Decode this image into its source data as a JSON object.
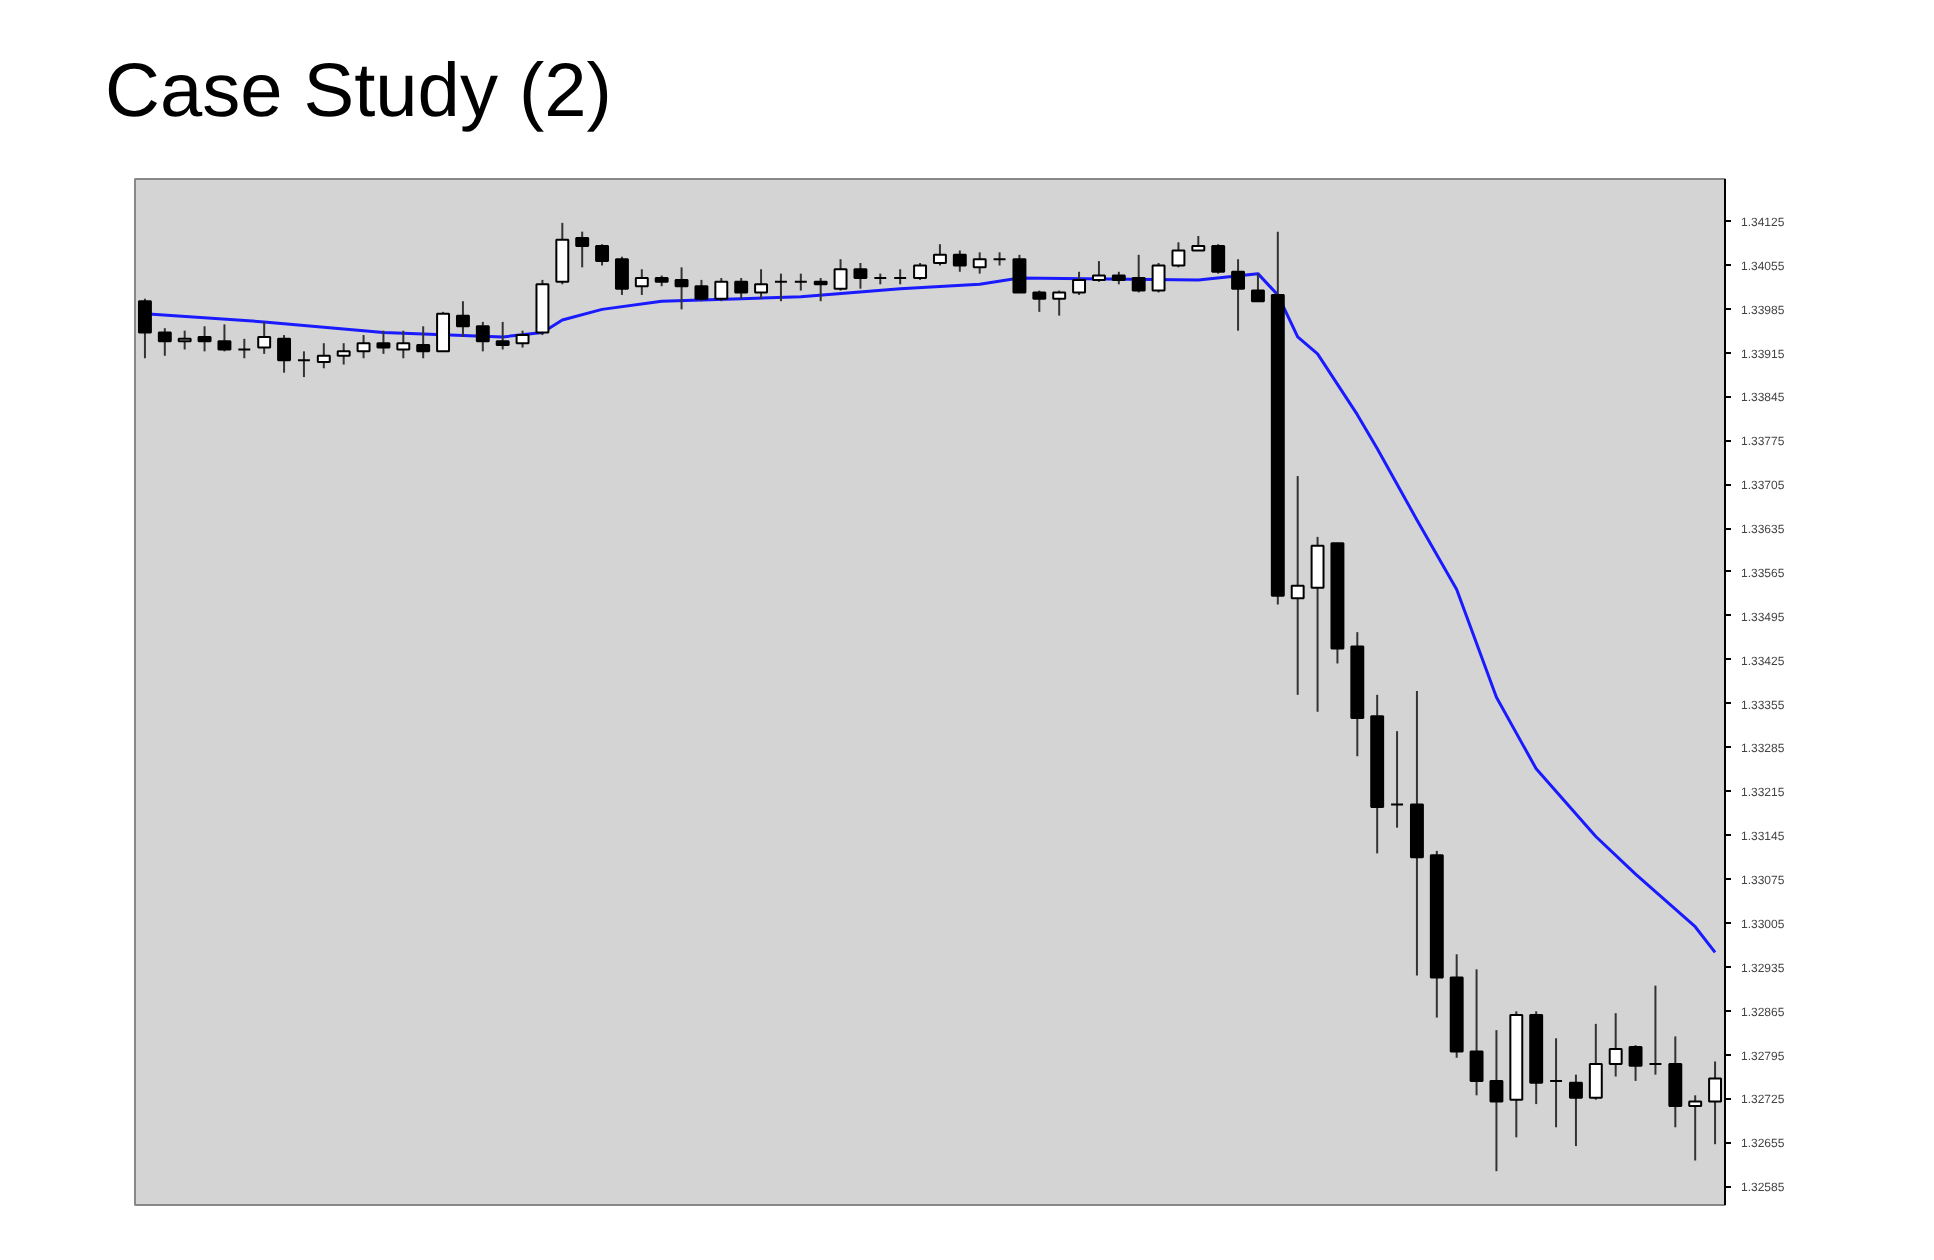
{
  "chart_data": {
    "type": "candlestick",
    "title": "Case Study (2)",
    "categories": [
      null,
      null,
      null,
      null,
      null,
      null,
      null,
      null,
      null,
      null,
      null,
      null,
      null,
      null,
      null,
      null,
      null,
      null,
      null,
      null,
      null,
      null,
      null,
      null,
      null,
      null,
      null,
      null,
      null,
      null,
      null,
      null,
      null,
      null,
      null,
      null,
      null,
      null,
      null,
      null,
      null,
      null,
      null,
      null,
      null,
      null,
      null,
      null,
      null,
      null,
      null,
      null,
      null,
      null,
      null,
      null,
      null,
      null,
      null,
      null,
      null,
      null,
      null,
      null,
      null,
      null,
      null,
      null,
      null,
      null,
      null,
      null,
      null,
      null,
      null,
      null,
      null,
      null,
      null,
      null
    ],
    "ohlc": [
      [
        1.33997,
        1.34001,
        1.33906,
        1.33947
      ],
      [
        1.33947,
        1.33954,
        1.3391,
        1.33933
      ],
      [
        1.33933,
        1.3395,
        1.3392,
        1.33937
      ],
      [
        1.3394,
        1.33957,
        1.33917,
        1.33933
      ],
      [
        1.33933,
        1.3396,
        1.33917,
        1.3392
      ],
      [
        1.3392,
        1.33937,
        1.33906,
        1.3392
      ],
      [
        1.33923,
        1.33964,
        1.33913,
        1.3394
      ],
      [
        1.33937,
        1.33943,
        1.33883,
        1.33903
      ],
      [
        1.33903,
        1.33917,
        1.33876,
        1.33903
      ],
      [
        1.339,
        1.3393,
        1.3389,
        1.3391
      ],
      [
        1.3391,
        1.3393,
        1.33896,
        1.33917
      ],
      [
        1.33917,
        1.33943,
        1.33906,
        1.3393
      ],
      [
        1.3393,
        1.3395,
        1.33913,
        1.33923
      ],
      [
        1.3392,
        1.3395,
        1.33906,
        1.3393
      ],
      [
        1.33927,
        1.33957,
        1.33906,
        1.33917
      ],
      [
        1.33917,
        1.3398,
        1.33917,
        1.33977
      ],
      [
        1.33974,
        1.33997,
        1.3394,
        1.33957
      ],
      [
        1.33957,
        1.33964,
        1.33917,
        1.33933
      ],
      [
        1.33933,
        1.33964,
        1.3392,
        1.33927
      ],
      [
        1.3393,
        1.3395,
        1.33923,
        1.33943
      ],
      [
        1.33947,
        1.34031,
        1.33943,
        1.34024
      ],
      [
        1.34028,
        1.34122,
        1.34024,
        1.34095
      ],
      [
        1.34098,
        1.34108,
        1.34051,
        1.34085
      ],
      [
        1.34085,
        1.34088,
        1.34054,
        1.34061
      ],
      [
        1.34064,
        1.34068,
        1.34007,
        1.34017
      ],
      [
        1.34021,
        1.34048,
        1.34007,
        1.34034
      ],
      [
        1.34034,
        1.34038,
        1.34021,
        1.34028
      ],
      [
        1.34031,
        1.34051,
        1.33984,
        1.34021
      ],
      [
        1.34021,
        1.34031,
        1.33997,
        1.34001
      ],
      [
        1.34001,
        1.34034,
        1.33997,
        1.34028
      ],
      [
        1.34028,
        1.34034,
        1.34001,
        1.34011
      ],
      [
        1.34011,
        1.34048,
        1.34001,
        1.34024
      ],
      [
        1.34028,
        1.34041,
        1.33997,
        1.34028
      ],
      [
        1.34028,
        1.34041,
        1.34014,
        1.34028
      ],
      [
        1.34028,
        1.34034,
        1.33997,
        1.34024
      ],
      [
        1.34017,
        1.34064,
        1.34014,
        1.34048
      ],
      [
        1.34048,
        1.34058,
        1.34017,
        1.34034
      ],
      [
        1.34034,
        1.34041,
        1.34024,
        1.34034
      ],
      [
        1.34034,
        1.34048,
        1.34024,
        1.34034
      ],
      [
        1.34034,
        1.34058,
        1.34031,
        1.34054
      ],
      [
        1.34058,
        1.34088,
        1.34054,
        1.34071
      ],
      [
        1.34071,
        1.34078,
        1.34044,
        1.34054
      ],
      [
        1.34051,
        1.34075,
        1.34041,
        1.34064
      ],
      [
        1.34064,
        1.34075,
        1.34054,
        1.34064
      ],
      [
        1.34064,
        1.34071,
        1.34011,
        1.34011
      ],
      [
        1.34011,
        1.34014,
        1.3398,
        1.34001
      ],
      [
        1.34001,
        1.34014,
        1.33974,
        1.34011
      ],
      [
        1.34011,
        1.34044,
        1.34007,
        1.34031
      ],
      [
        1.34031,
        1.34061,
        1.34028,
        1.34038
      ],
      [
        1.34038,
        1.34044,
        1.34024,
        1.34031
      ],
      [
        1.34034,
        1.34071,
        1.34011,
        1.34014
      ],
      [
        1.34014,
        1.34058,
        1.34011,
        1.34054
      ],
      [
        1.34054,
        1.34091,
        1.34051,
        1.34078
      ],
      [
        1.34078,
        1.34101,
        1.34078,
        1.34085
      ],
      [
        1.34085,
        1.34088,
        1.34041,
        1.34044
      ],
      [
        1.34044,
        1.34064,
        1.3395,
        1.34017
      ],
      [
        1.34014,
        1.34041,
        1.33997,
        1.33997
      ],
      [
        1.34007,
        1.34108,
        1.33513,
        1.33527
      ],
      [
        1.33523,
        1.33718,
        1.33369,
        1.33543
      ],
      [
        1.3354,
        1.33621,
        1.33342,
        1.33607
      ],
      [
        1.33611,
        1.33611,
        1.33419,
        1.33443
      ],
      [
        1.33446,
        1.33469,
        1.33271,
        1.33332
      ],
      [
        1.33335,
        1.33369,
        1.33116,
        1.3319
      ],
      [
        1.33194,
        1.33311,
        1.33157,
        1.33194
      ],
      [
        1.33194,
        1.33375,
        1.32921,
        1.3311
      ],
      [
        1.33113,
        1.3312,
        1.32854,
        1.32918
      ],
      [
        1.32918,
        1.32955,
        1.3279,
        1.328
      ],
      [
        1.328,
        1.32931,
        1.3273,
        1.32753
      ],
      [
        1.32753,
        1.32834,
        1.32609,
        1.3272
      ],
      [
        1.32723,
        1.32864,
        1.32663,
        1.32858
      ],
      [
        1.32858,
        1.32864,
        1.32716,
        1.3275
      ],
      [
        1.32753,
        1.32821,
        1.32679,
        1.32753
      ],
      [
        1.3275,
        1.32763,
        1.32649,
        1.32726
      ],
      [
        1.32726,
        1.32844,
        1.32723,
        1.3278
      ],
      [
        1.3278,
        1.32861,
        1.3276,
        1.32804
      ],
      [
        1.32807,
        1.3281,
        1.32753,
        1.32777
      ],
      [
        1.3278,
        1.32905,
        1.32763,
        1.3278
      ],
      [
        1.3278,
        1.32824,
        1.32679,
        1.32713
      ],
      [
        1.32713,
        1.3273,
        1.32626,
        1.3272
      ],
      [
        1.3272,
        1.32784,
        1.32652,
        1.32757
      ]
    ],
    "series": [
      {
        "type": "line",
        "color": "#1a1aff",
        "values": [
          1.33977,
          null,
          null,
          null,
          null,
          null,
          1.33964,
          null,
          null,
          null,
          null,
          null,
          1.33947,
          null,
          null,
          null,
          null,
          null,
          1.3394,
          null,
          1.33947,
          1.33967,
          null,
          1.33984,
          null,
          null,
          1.33997,
          null,
          null,
          null,
          1.34001,
          null,
          null,
          1.34004,
          null,
          null,
          null,
          null,
          1.34017,
          null,
          null,
          null,
          1.34024,
          null,
          1.34034,
          null,
          null,
          null,
          null,
          null,
          null,
          null,
          null,
          1.34031,
          null,
          null,
          1.34041,
          1.34007,
          1.3394,
          1.33913,
          null,
          1.33816,
          1.33762,
          null,
          1.33648,
          null,
          1.33537,
          null,
          1.33365,
          null,
          1.33251,
          null,
          null,
          1.33143,
          null,
          1.33083,
          null,
          null,
          1.32999,
          1.32958
        ]
      }
    ],
    "ylim": [
      1.32555,
      1.34192
    ],
    "yticks": [
      1.32585,
      1.32655,
      1.32725,
      1.32795,
      1.32865,
      1.32935,
      1.33005,
      1.33075,
      1.33145,
      1.33215,
      1.33285,
      1.33355,
      1.33425,
      1.33495,
      1.33565,
      1.33635,
      1.33705,
      1.33775,
      1.33845,
      1.33915,
      1.33985,
      1.34055,
      1.34125
    ],
    "tick_labels": "y",
    "grid": false,
    "marker": "none",
    "line_style": "solid"
  }
}
